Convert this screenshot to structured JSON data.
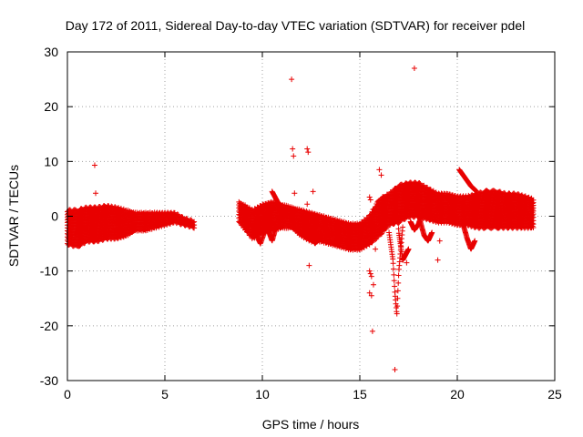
{
  "chart_data": {
    "type": "scatter",
    "title": "Day 172 of 2011, Sidereal Day-to-day VTEC variation (SDTVAR) for receiver pdel",
    "xlabel": "GPS time / hours",
    "ylabel": "SDTVAR / TECUs",
    "xlim": [
      0,
      25
    ],
    "ylim": [
      -30,
      30
    ],
    "x_ticks": [
      0,
      5,
      10,
      15,
      20,
      25
    ],
    "y_ticks": [
      -30,
      -20,
      -10,
      0,
      10,
      20,
      30
    ],
    "grid": true,
    "marker": "+",
    "color": "#e80000",
    "series": [
      {
        "name": "band",
        "segments": [
          {
            "x": [
              0.0,
              0.5,
              1.0,
              1.5,
              2.0,
              2.5,
              3.0,
              3.5,
              4.0,
              4.5,
              5.0,
              5.5,
              6.0,
              6.5
            ],
            "upper": [
              1.0,
              1.0,
              1.5,
              1.5,
              1.8,
              1.5,
              1.0,
              0.5,
              0.5,
              0.5,
              0.5,
              0.5,
              -0.5,
              -1.0
            ],
            "lower": [
              -5.0,
              -5.5,
              -4.5,
              -4.5,
              -4.0,
              -4.0,
              -3.5,
              -2.5,
              -2.5,
              -2.0,
              -1.5,
              -1.0,
              -1.5,
              -2.0
            ]
          },
          {
            "x": [
              8.8,
              9.5,
              10.0,
              10.5,
              11.0,
              11.5,
              12.0,
              12.5,
              13.0,
              13.5,
              14.0,
              14.5,
              15.0,
              15.5,
              16.0,
              16.5,
              17.0,
              17.5,
              18.0,
              18.5,
              19.0,
              19.5,
              20.0,
              20.5,
              21.0,
              21.5,
              22.0,
              22.5,
              23.0,
              23.5,
              23.9
            ],
            "upper": [
              2.5,
              1.0,
              2.0,
              2.5,
              2.0,
              1.5,
              1.0,
              0.5,
              0.0,
              -0.5,
              -1.0,
              -1.5,
              -1.5,
              0.0,
              3.0,
              4.0,
              5.5,
              6.0,
              6.0,
              5.0,
              4.0,
              4.0,
              3.5,
              3.5,
              4.0,
              4.5,
              4.5,
              4.0,
              4.0,
              3.5,
              3.0
            ],
            "lower": [
              -1.0,
              -4.0,
              -3.0,
              -2.5,
              -2.0,
              -2.0,
              -3.5,
              -4.5,
              -4.5,
              -5.0,
              -5.5,
              -6.0,
              -6.0,
              -5.0,
              -3.5,
              -1.5,
              -1.0,
              0.0,
              0.0,
              -0.5,
              -1.0,
              -1.0,
              -1.5,
              -1.5,
              -2.0,
              -2.0,
              -2.0,
              -2.0,
              -2.0,
              -2.0,
              -2.0
            ]
          }
        ]
      },
      {
        "name": "arcs",
        "arcs": [
          {
            "x": [
              9.5,
              9.7,
              9.9,
              10.1,
              10.3
            ],
            "y": [
              -1.5,
              -3.5,
              -5.0,
              -3.0,
              -1.0
            ]
          },
          {
            "x": [
              10.1,
              10.3,
              10.5,
              10.7
            ],
            "y": [
              0.0,
              -2.5,
              -4.5,
              -2.0
            ]
          },
          {
            "x": [
              10.5,
              10.8,
              11.0,
              11.3
            ],
            "y": [
              4.5,
              2.5,
              1.0,
              0.0
            ]
          },
          {
            "x": [
              12.1,
              12.4,
              12.7,
              13.0
            ],
            "y": [
              -1.0,
              -3.0,
              -5.0,
              -3.5
            ]
          },
          {
            "x": [
              16.5,
              16.7,
              16.8,
              16.9,
              17.0,
              17.2
            ],
            "y": [
              -3.0,
              -8.0,
              -14.0,
              -18.0,
              -10.0,
              -2.0
            ]
          },
          {
            "x": [
              16.9,
              17.0,
              17.2,
              17.5
            ],
            "y": [
              4.0,
              -3.0,
              -8.0,
              -6.0
            ]
          },
          {
            "x": [
              17.6,
              17.8,
              18.0,
              18.2
            ],
            "y": [
              -1.0,
              -2.5,
              -1.5,
              0.5
            ]
          },
          {
            "x": [
              18.1,
              18.3,
              18.5,
              18.7
            ],
            "y": [
              -1.0,
              -3.5,
              -4.5,
              -3.0
            ]
          },
          {
            "x": [
              20.1,
              20.4,
              20.7,
              21.0
            ],
            "y": [
              8.5,
              7.0,
              5.5,
              4.5
            ]
          },
          {
            "x": [
              20.3,
              20.5,
              20.7,
              20.9
            ],
            "y": [
              -1.5,
              -4.0,
              -6.0,
              -4.5
            ]
          }
        ]
      },
      {
        "name": "outliers",
        "x": [
          1.4,
          1.45,
          11.5,
          11.55,
          11.6,
          11.65,
          11.6,
          12.3,
          12.35,
          12.3,
          12.6,
          12.4,
          15.5,
          15.55,
          15.6,
          15.5,
          15.6,
          15.65,
          15.7,
          15.8,
          15.55,
          15.5,
          16.0,
          16.1,
          16.2,
          16.8,
          17.4,
          17.8,
          19.0,
          19.1
        ],
        "y": [
          9.3,
          4.2,
          25.0,
          12.3,
          11.0,
          4.2,
          -0.5,
          12.3,
          11.7,
          2.2,
          4.5,
          -9.0,
          -10.0,
          -10.5,
          -11.0,
          -14.0,
          -14.5,
          -21.0,
          -12.5,
          -6.0,
          3.0,
          3.5,
          8.5,
          7.5,
          0.0,
          -28.0,
          -8.5,
          27.0,
          -8.0,
          -4.5
        ]
      }
    ]
  }
}
